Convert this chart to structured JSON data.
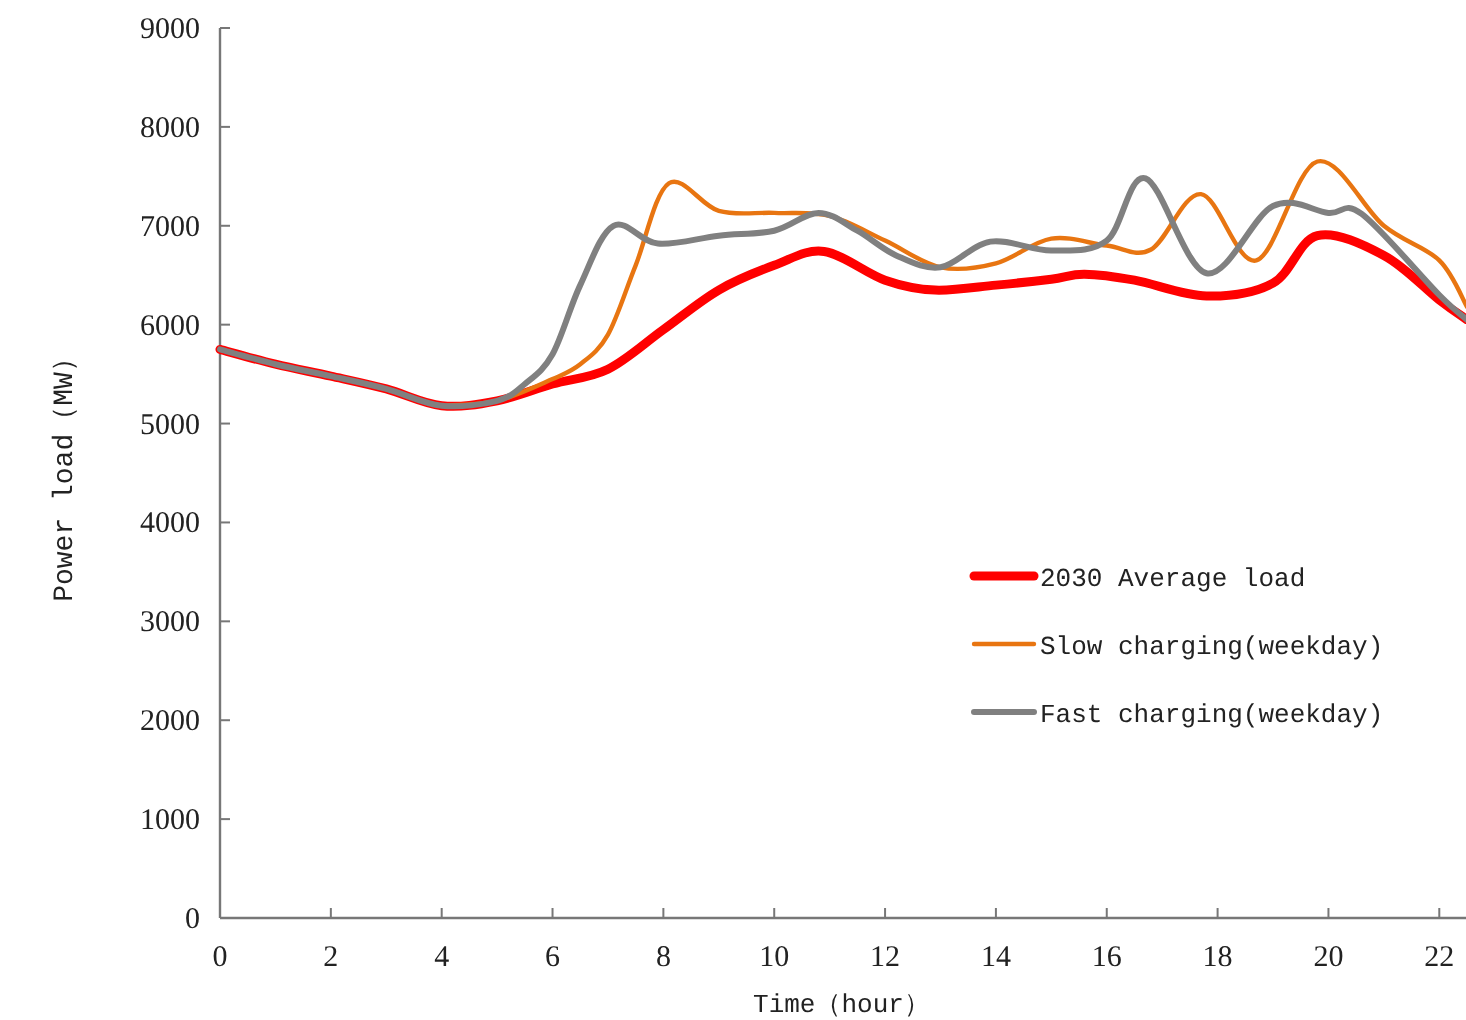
{
  "chart_data": {
    "type": "line",
    "xlabel": "Time（hour）",
    "ylabel": "Power load（MW）",
    "xlim": [
      0,
      22.5
    ],
    "xticks": [
      0,
      2,
      4,
      6,
      8,
      10,
      12,
      14,
      16,
      18,
      20,
      22
    ],
    "ylim": [
      0,
      9000
    ],
    "yticks": [
      0,
      1000,
      2000,
      3000,
      4000,
      5000,
      6000,
      7000,
      8000,
      9000
    ],
    "grid": false,
    "legend": "right",
    "series": [
      {
        "name": "2030 Average load",
        "color": "#ff0000",
        "x": [
          0,
          1,
          2,
          3,
          4,
          5,
          6,
          7,
          8,
          9,
          10,
          10.9,
          12,
          12.9,
          14,
          15,
          15.6,
          16.5,
          17.8,
          19,
          19.8,
          21,
          22,
          22.5
        ],
        "values": [
          5750,
          5600,
          5480,
          5350,
          5180,
          5230,
          5400,
          5550,
          5950,
          6350,
          6600,
          6740,
          6450,
          6350,
          6400,
          6460,
          6510,
          6450,
          6290,
          6420,
          6900,
          6700,
          6250,
          6050
        ]
      },
      {
        "name": "Slow charging(weekday)",
        "color": "#e87511",
        "x": [
          4,
          5,
          6,
          6.5,
          7,
          7.5,
          8.1,
          9,
          10,
          11,
          12,
          13,
          14,
          15,
          16,
          16.8,
          17.7,
          18.7,
          19.8,
          21,
          22,
          22.5
        ],
        "values": [
          5180,
          5230,
          5450,
          5600,
          5900,
          6600,
          7430,
          7150,
          7130,
          7100,
          6850,
          6580,
          6620,
          6870,
          6800,
          6760,
          7320,
          6650,
          7650,
          7000,
          6650,
          6180
        ]
      },
      {
        "name": "Fast charging(weekday)",
        "color": "#808080",
        "x": [
          0,
          1,
          2,
          3,
          4,
          5,
          5.5,
          6,
          6.5,
          7.1,
          7.9,
          9,
          10,
          10.8,
          11.5,
          12.2,
          13,
          13.9,
          15,
          16,
          16.7,
          17.8,
          19,
          20,
          20.6,
          22,
          22.5
        ],
        "values": [
          5750,
          5600,
          5480,
          5350,
          5180,
          5230,
          5400,
          5700,
          6400,
          7000,
          6820,
          6900,
          6950,
          7130,
          6950,
          6700,
          6580,
          6840,
          6750,
          6850,
          7480,
          6520,
          7200,
          7130,
          7120,
          6300,
          6050
        ]
      }
    ]
  }
}
